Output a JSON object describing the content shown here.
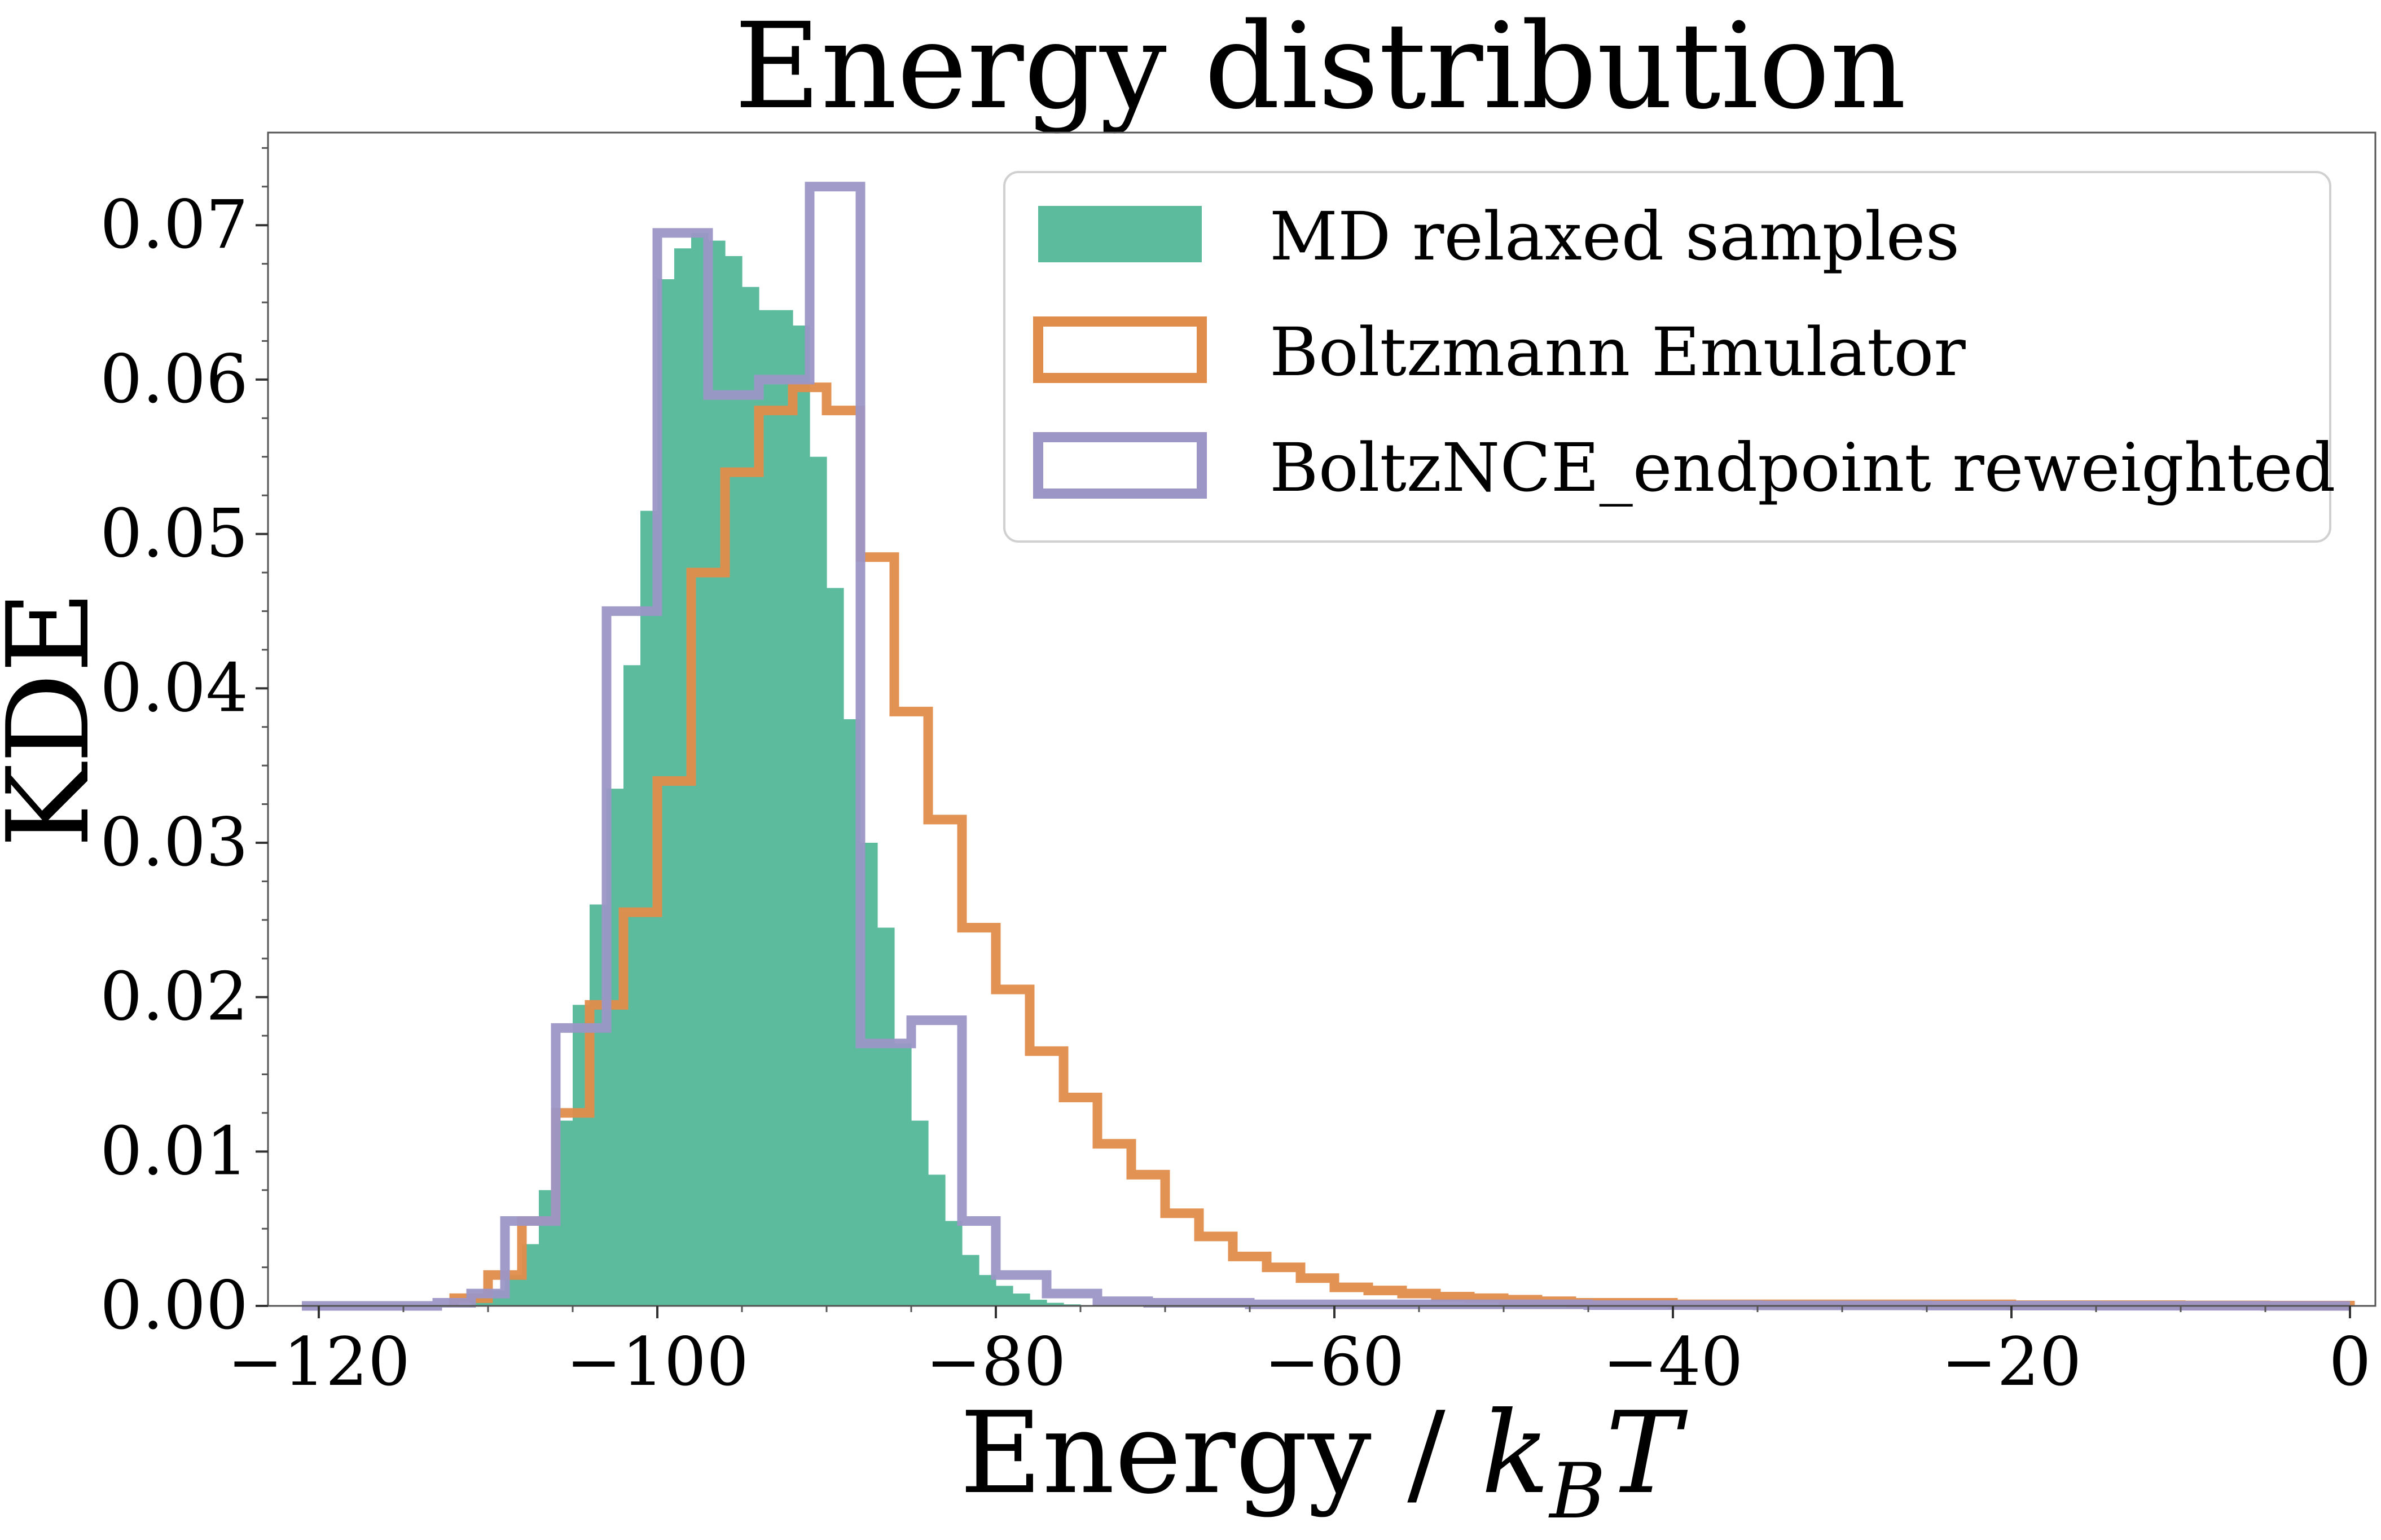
{
  "chart_data": {
    "type": "histogram",
    "title": "Energy distribution",
    "xlabel": "Energy / kBT",
    "xlabel_parts": {
      "main": "Energy / ",
      "k": "k",
      "sub": "B",
      "t": "T"
    },
    "ylabel": "KDE",
    "xlim": [
      -123,
      1.5
    ],
    "ylim": [
      0,
      0.076
    ],
    "xticks": [
      -120,
      -100,
      -80,
      -60,
      -40,
      -20,
      0
    ],
    "xtick_labels": [
      "−120",
      "−100",
      "−80",
      "−60",
      "−40",
      "−20",
      "0"
    ],
    "yticks": [
      0,
      0.01,
      0.02,
      0.03,
      0.04,
      0.05,
      0.06,
      0.07
    ],
    "ytick_labels": [
      "0.00",
      "0.01",
      "0.02",
      "0.03",
      "0.04",
      "0.05",
      "0.06",
      "0.07"
    ],
    "grid": false,
    "legend_position": "top-right",
    "series": [
      {
        "name": "MD relaxed samples",
        "style": "filled",
        "color": "#5dbb9d",
        "bin_edges": [
          -111,
          -110,
          -109,
          -108,
          -107,
          -106,
          -105,
          -104,
          -103,
          -102,
          -101,
          -100,
          -99,
          -98,
          -97,
          -96,
          -95,
          -94,
          -93,
          -92,
          -91,
          -90,
          -89,
          -88,
          -87,
          -86,
          -85,
          -84,
          -83,
          -82,
          -81,
          -80,
          -79,
          -78,
          -77,
          -76,
          -75
        ],
        "values": [
          0.0005,
          0.001,
          0.002,
          0.004,
          0.0075,
          0.012,
          0.0195,
          0.026,
          0.0335,
          0.0415,
          0.0515,
          0.0665,
          0.0685,
          0.0695,
          0.069,
          0.068,
          0.066,
          0.0645,
          0.0645,
          0.0635,
          0.055,
          0.0465,
          0.038,
          0.03,
          0.0245,
          0.017,
          0.012,
          0.0085,
          0.0055,
          0.0033,
          0.002,
          0.0013,
          0.0008,
          0.0004,
          0.0002,
          0.0001
        ]
      },
      {
        "name": "Boltzmann Emulator",
        "style": "step",
        "color": "#e08c4a",
        "bin_edges": [
          -112,
          -110,
          -108,
          -106,
          -104,
          -102,
          -100,
          -98,
          -96,
          -94,
          -92,
          -90,
          -88,
          -86,
          -84,
          -82,
          -80,
          -78,
          -76,
          -74,
          -72,
          -70,
          -68,
          -66,
          -64,
          -62,
          -60,
          -58,
          -56,
          -54,
          -52,
          -50,
          -48,
          -46,
          -44,
          -42,
          -40,
          -35,
          -30,
          -25,
          -20,
          -15,
          -10,
          -5,
          0
        ],
        "values": [
          0.0005,
          0.002,
          0.0055,
          0.0125,
          0.0195,
          0.0255,
          0.034,
          0.0475,
          0.054,
          0.058,
          0.0595,
          0.058,
          0.0485,
          0.0385,
          0.0315,
          0.0245,
          0.0205,
          0.0165,
          0.0135,
          0.0105,
          0.0085,
          0.006,
          0.0045,
          0.0032,
          0.0025,
          0.0018,
          0.0012,
          0.001,
          0.0008,
          0.0006,
          0.0005,
          0.0004,
          0.0003,
          0.0002,
          0.0002,
          0.0002,
          0.0001,
          0.0001,
          0.0001,
          0.0001,
          5e-05,
          5e-05,
          3e-05,
          2e-05
        ]
      },
      {
        "name": "BoltzNCE_endpoint reweighted",
        "style": "step",
        "color": "#9b96c6",
        "bin_edges": [
          -121,
          -113,
          -111,
          -109,
          -106,
          -103,
          -100,
          -97,
          -94,
          -91,
          -88,
          -85,
          -82,
          -80,
          -77,
          -74,
          -71,
          -65,
          -55,
          -45,
          -35,
          -25,
          -15,
          -5,
          0
        ],
        "values": [
          0.0,
          0.0002,
          0.0008,
          0.0055,
          0.018,
          0.045,
          0.0695,
          0.059,
          0.06,
          0.0725,
          0.017,
          0.0185,
          0.0055,
          0.002,
          0.0008,
          0.0003,
          0.0002,
          0.0001,
          0.0001,
          5e-05,
          3e-05,
          2e-05,
          1e-05,
          0.0
        ]
      }
    ]
  }
}
